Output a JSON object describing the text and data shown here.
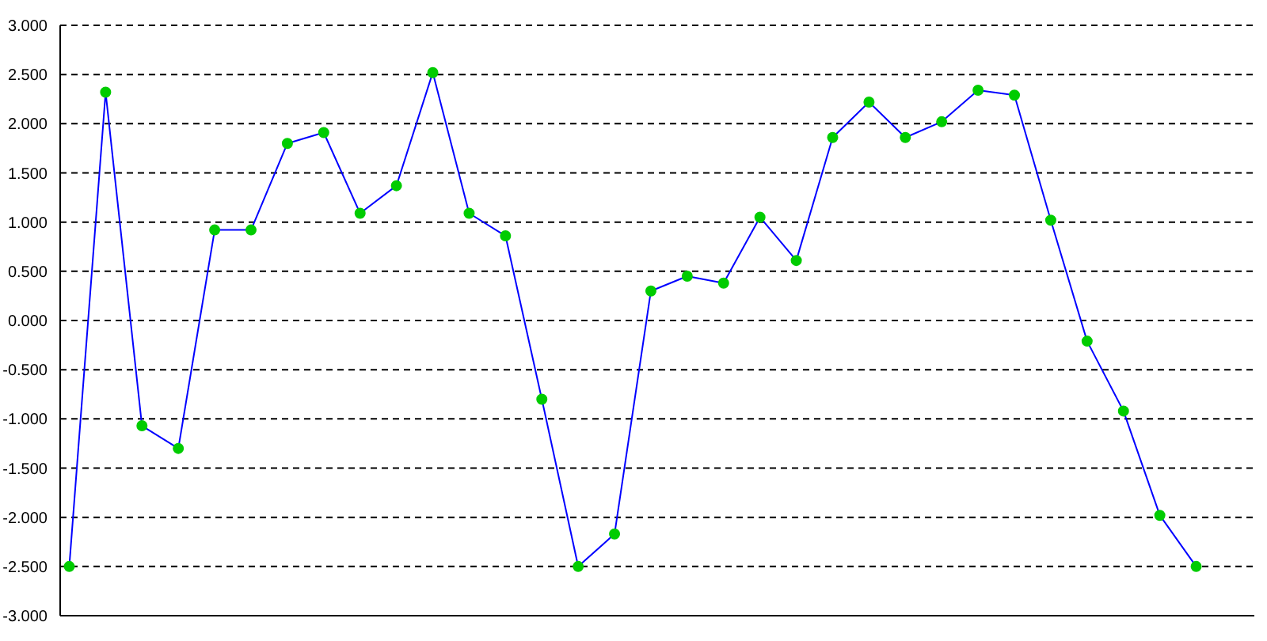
{
  "chart_data": {
    "type": "line",
    "categories": [
      null,
      null,
      null,
      null,
      null,
      null,
      null,
      null,
      null,
      null,
      null,
      null,
      null,
      null,
      null,
      null,
      null,
      null,
      null,
      null,
      null,
      null,
      null,
      null,
      null,
      null,
      null,
      null,
      null,
      null,
      null,
      null
    ],
    "series": [
      {
        "color": "#0000ff",
        "values": [
          -2.5,
          2.32,
          -1.07,
          -1.3,
          0.92,
          0.92,
          1.8,
          1.91,
          1.09,
          1.37,
          2.52,
          1.09,
          0.86,
          -0.8,
          -2.5,
          -2.17,
          0.3,
          0.45,
          0.38,
          1.05,
          0.61,
          1.86,
          2.22,
          1.86,
          2.02,
          2.34,
          2.29,
          1.02,
          -0.21,
          -0.92,
          -1.98,
          -2.5
        ]
      }
    ],
    "ylim": [
      -3,
      3
    ],
    "yticks": [
      {
        "value": -3,
        "label": "-3.000"
      },
      {
        "value": -2.5,
        "label": "-2.500"
      },
      {
        "value": -2,
        "label": "-2.000"
      },
      {
        "value": -1.5,
        "label": "-1.500"
      },
      {
        "value": -1,
        "label": "-1.000"
      },
      {
        "value": -0.5,
        "label": "-0.500"
      },
      {
        "value": 0,
        "label": "0.000"
      },
      {
        "value": 0.5,
        "label": "0.500"
      },
      {
        "value": 1,
        "label": "1.000"
      },
      {
        "value": 1.5,
        "label": "1.500"
      },
      {
        "value": 2,
        "label": "2.000"
      },
      {
        "value": 2.5,
        "label": "2.500"
      },
      {
        "value": 3,
        "label": "3.000"
      }
    ],
    "grid": "y",
    "legend": false,
    "marker": "circle",
    "line_style": "solid",
    "tick_labels": "y"
  }
}
